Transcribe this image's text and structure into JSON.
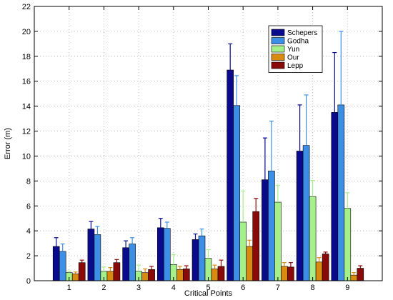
{
  "chart_data": {
    "type": "bar",
    "title": "",
    "xlabel": "Critical Points",
    "ylabel": "Error (m)",
    "ylim": [
      0,
      22
    ],
    "yticks": [
      0,
      2,
      4,
      6,
      8,
      10,
      12,
      14,
      16,
      18,
      20,
      22
    ],
    "grid": true,
    "legend_position": "top-right",
    "categories": [
      "1",
      "2",
      "3",
      "4",
      "5",
      "6",
      "7",
      "8",
      "9"
    ],
    "series": [
      {
        "name": "Schepers",
        "color": "#0a0a8c",
        "values": [
          2.75,
          4.15,
          2.65,
          4.25,
          3.3,
          16.9,
          8.1,
          10.4,
          13.5
        ],
        "errors": [
          0.7,
          0.6,
          0.55,
          0.75,
          0.45,
          2.1,
          3.35,
          3.7,
          4.8
        ]
      },
      {
        "name": "Godha",
        "color": "#3d8fe6",
        "values": [
          2.35,
          3.7,
          2.95,
          4.2,
          3.6,
          14.05,
          8.8,
          10.85,
          14.1
        ],
        "errors": [
          0.6,
          0.65,
          0.5,
          0.5,
          0.55,
          2.4,
          4.0,
          4.05,
          5.9
        ]
      },
      {
        "name": "Yun",
        "color": "#a6f08a",
        "values": [
          0.65,
          0.75,
          0.75,
          1.3,
          1.8,
          4.7,
          6.3,
          6.75,
          5.8
        ],
        "errors": [
          0.12,
          0.35,
          0.5,
          0.8,
          0.7,
          2.5,
          1.35,
          1.3,
          1.25
        ]
      },
      {
        "name": "Our",
        "color": "#d98a10",
        "values": [
          0.55,
          0.75,
          0.65,
          0.9,
          0.95,
          2.75,
          1.15,
          1.5,
          0.45
        ],
        "errors": [
          0.15,
          0.3,
          0.3,
          0.25,
          0.3,
          0.5,
          0.3,
          0.35,
          0.2
        ]
      },
      {
        "name": "Lepp",
        "color": "#8a0a0a",
        "values": [
          1.45,
          1.45,
          0.9,
          0.95,
          1.15,
          5.55,
          1.1,
          2.15,
          1.0
        ],
        "errors": [
          0.2,
          0.25,
          0.25,
          0.25,
          0.5,
          1.05,
          0.35,
          0.15,
          0.2
        ]
      }
    ]
  }
}
